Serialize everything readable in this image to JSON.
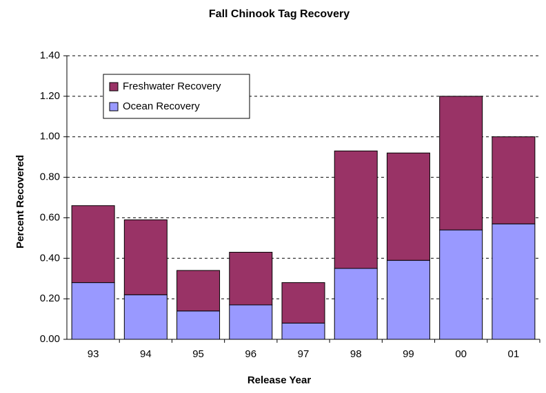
{
  "chart_data": {
    "type": "stacked_bar",
    "title": "Fall Chinook Tag Recovery",
    "x_label": "Release Year",
    "y_label": "Percent Recovered",
    "categories": [
      "93",
      "94",
      "95",
      "96",
      "97",
      "98",
      "99",
      "00",
      "01"
    ],
    "series": [
      {
        "name": "Ocean Recovery",
        "color": "#9999ff",
        "values": [
          0.28,
          0.22,
          0.14,
          0.17,
          0.08,
          0.35,
          0.39,
          0.54,
          0.57
        ]
      },
      {
        "name": "Freshwater Recovery",
        "color": "#993366",
        "values": [
          0.38,
          0.37,
          0.2,
          0.26,
          0.2,
          0.58,
          0.53,
          0.66,
          0.43
        ]
      }
    ],
    "ylim": [
      0,
      1.4
    ],
    "yticks": [
      {
        "value": 0,
        "label": "0.00"
      },
      {
        "value": 0.2,
        "label": "0.20"
      },
      {
        "value": 0.4,
        "label": "0.40"
      },
      {
        "value": 0.6,
        "label": "0.60"
      },
      {
        "value": 0.8,
        "label": "0.80"
      },
      {
        "value": 1.0,
        "label": "1.00"
      },
      {
        "value": 1.2,
        "label": "1.20"
      },
      {
        "value": 1.4,
        "label": "1.40"
      }
    ],
    "grid": true,
    "legend": "upper left"
  }
}
